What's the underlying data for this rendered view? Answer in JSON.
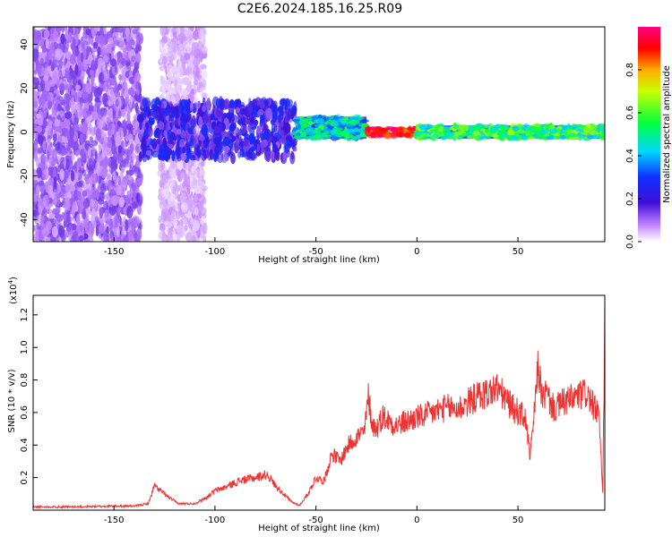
{
  "title": "C2E6.2024.185.16.25.R09",
  "colors": {
    "snr_line": "#ee3333",
    "axis": "#000000",
    "background": "#ffffff"
  },
  "chart_data": [
    {
      "type": "heatmap",
      "xlabel": "Height of straight line (km)",
      "ylabel": "Frequency (Hz)",
      "xlim": [
        -190,
        93
      ],
      "ylim": [
        -50,
        48
      ],
      "xticks": [
        -150,
        -100,
        -50,
        0,
        50
      ],
      "yticks": [
        -40,
        -20,
        0,
        20,
        40
      ],
      "grid": false,
      "colorbar": {
        "label": "Normalized spectral amplitude",
        "range": [
          0.0,
          1.0
        ],
        "ticks": [
          0.0,
          0.2,
          0.4,
          0.6,
          0.8
        ],
        "tick_labels": [
          "0.0",
          "0.2",
          "0.4",
          "0.6",
          "0.8"
        ],
        "colormap": "rainbow (white → violet → blue → cyan → green → yellow → red → magenta)"
      },
      "regions": [
        {
          "x_range": [
            -190,
            -137
          ],
          "freq_range": [
            -50,
            48
          ],
          "amplitude": [
            0.05,
            0.15
          ]
        },
        {
          "x_range": [
            -127,
            -105
          ],
          "freq_range": [
            -50,
            48
          ],
          "amplitude": [
            0.02,
            0.08
          ]
        },
        {
          "x_range": [
            -137,
            -60
          ],
          "freq_range": [
            -12,
            14
          ],
          "amplitude": [
            0.1,
            0.3
          ]
        },
        {
          "x_range": [
            -60,
            -25
          ],
          "freq_range": [
            -3,
            7
          ],
          "amplitude": [
            0.3,
            0.6
          ]
        },
        {
          "x_range": [
            -25,
            0
          ],
          "freq_range": [
            -2,
            2
          ],
          "amplitude": [
            0.8,
            1.0
          ]
        },
        {
          "x_range": [
            0,
            93
          ],
          "freq_range": [
            -3,
            3
          ],
          "amplitude": [
            0.4,
            0.7
          ]
        }
      ]
    },
    {
      "type": "line",
      "xlabel": "Height of straight line (km)",
      "ylabel": "SNR (10 * v/v)",
      "y_multiplier_label": "(x10",
      "y_multiplier_exp": "4",
      "xlim": [
        -190,
        93
      ],
      "ylim": [
        0,
        1.32
      ],
      "xticks": [
        -150,
        -100,
        -50,
        0,
        50
      ],
      "yticks": [
        0.2,
        0.4,
        0.6,
        0.8,
        1.0,
        1.2
      ],
      "ytick_labels": [
        "0.2",
        "0.4",
        "0.6",
        "0.8",
        "1.0",
        "1.2"
      ],
      "grid": false,
      "series": [
        {
          "x": [
            -190,
            -170,
            -150,
            -140,
            -133,
            -130,
            -127,
            -123,
            -118,
            -110,
            -104,
            -100,
            -95,
            -88,
            -80,
            -74,
            -70,
            -66,
            -62,
            -58,
            -54,
            -50,
            -46,
            -42,
            -38,
            -34,
            -30,
            -26,
            -24,
            -22,
            -20,
            -17,
            -14,
            -10,
            -6,
            -2,
            0,
            4,
            8,
            12,
            16,
            20,
            25,
            30,
            35,
            40,
            44,
            48,
            51,
            54,
            56,
            58,
            60,
            62,
            64,
            66,
            68,
            72,
            76,
            80,
            84,
            88,
            90,
            92,
            93
          ],
          "values": [
            0.02,
            0.02,
            0.025,
            0.025,
            0.04,
            0.15,
            0.12,
            0.08,
            0.04,
            0.04,
            0.08,
            0.12,
            0.14,
            0.18,
            0.2,
            0.22,
            0.15,
            0.1,
            0.05,
            0.03,
            0.1,
            0.2,
            0.18,
            0.35,
            0.3,
            0.4,
            0.45,
            0.48,
            0.7,
            0.52,
            0.5,
            0.58,
            0.55,
            0.52,
            0.54,
            0.56,
            0.57,
            0.58,
            0.6,
            0.62,
            0.63,
            0.62,
            0.66,
            0.7,
            0.72,
            0.75,
            0.68,
            0.62,
            0.6,
            0.55,
            0.32,
            0.58,
            0.9,
            0.68,
            0.72,
            0.66,
            0.62,
            0.66,
            0.68,
            0.7,
            0.72,
            0.62,
            0.6,
            0.1,
            1.15
          ]
        }
      ]
    }
  ]
}
